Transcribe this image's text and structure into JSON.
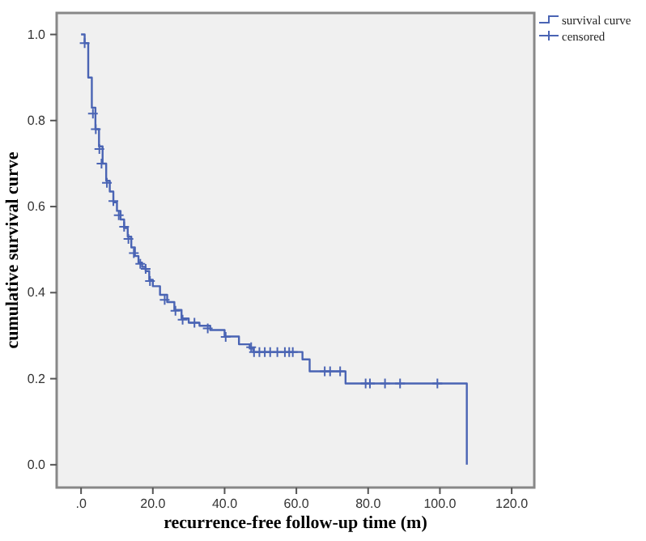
{
  "chart_data": {
    "type": "step",
    "xlabel": "recurrence-free follow-up time (m)",
    "ylabel": "cumulative survival curve",
    "xlim": [
      -6.8,
      126.3
    ],
    "ylim": [
      -0.053,
      1.05
    ],
    "xticks": [
      {
        "value": 0,
        "label": ".0"
      },
      {
        "value": 20,
        "label": "20.0"
      },
      {
        "value": 40,
        "label": "40.0"
      },
      {
        "value": 60,
        "label": "60.0"
      },
      {
        "value": 80,
        "label": "80.0"
      },
      {
        "value": 100,
        "label": "100.0"
      },
      {
        "value": 120,
        "label": "120.0"
      }
    ],
    "yticks": [
      {
        "value": 0,
        "label": "0.0"
      },
      {
        "value": 0.2,
        "label": "0.2"
      },
      {
        "value": 0.4,
        "label": "0.4"
      },
      {
        "value": 0.6,
        "label": "0.6"
      },
      {
        "value": 0.8,
        "label": "0.8"
      },
      {
        "value": 1,
        "label": "1.0"
      }
    ],
    "grid": false,
    "legend": "top right",
    "series": [
      {
        "name": "survival curve",
        "color": "#4a64b4",
        "marker": "none",
        "x": [
          0,
          1,
          2,
          3,
          4,
          5,
          6,
          7,
          8,
          9,
          10,
          11,
          12,
          13,
          14,
          15,
          16,
          17,
          18,
          19,
          20,
          22,
          24,
          26,
          28,
          30,
          33,
          36,
          40,
          44,
          47,
          48,
          61.7,
          63.7,
          73.7,
          107.5
        ],
        "values": [
          1.0,
          0.98,
          0.9,
          0.83,
          0.78,
          0.74,
          0.7,
          0.66,
          0.635,
          0.61,
          0.59,
          0.57,
          0.55,
          0.53,
          0.505,
          0.485,
          0.47,
          0.46,
          0.45,
          0.43,
          0.415,
          0.395,
          0.378,
          0.36,
          0.34,
          0.33,
          0.323,
          0.313,
          0.298,
          0.28,
          0.27,
          0.262,
          0.245,
          0.217,
          0.189,
          0
        ]
      },
      {
        "name": "censored",
        "type": "scatter",
        "color": "#4a64b4",
        "marker": "cross",
        "x": [
          1.0,
          3.3,
          4.1,
          5.1,
          5.7,
          7.2,
          9.0,
          10.5,
          12.0,
          13.2,
          14.7,
          16.5,
          18.0,
          19.2,
          23.3,
          26.3,
          28.3,
          31.6,
          35.3,
          40.3,
          47.4,
          48.2,
          49.7,
          51.2,
          52.7,
          54.7,
          56.8,
          58,
          59,
          67.9,
          69.4,
          72.2,
          79.3,
          80.5,
          84.7,
          88.9,
          99.3
        ],
        "values": [
          0.98,
          0.816,
          0.78,
          0.734,
          0.7,
          0.655,
          0.613,
          0.58,
          0.553,
          0.525,
          0.492,
          0.467,
          0.455,
          0.427,
          0.383,
          0.358,
          0.337,
          0.33,
          0.317,
          0.297,
          0.273,
          0.262,
          0.262,
          0.262,
          0.262,
          0.262,
          0.262,
          0.262,
          0.262,
          0.217,
          0.217,
          0.217,
          0.189,
          0.189,
          0.189,
          0.189,
          0.189
        ]
      }
    ]
  }
}
